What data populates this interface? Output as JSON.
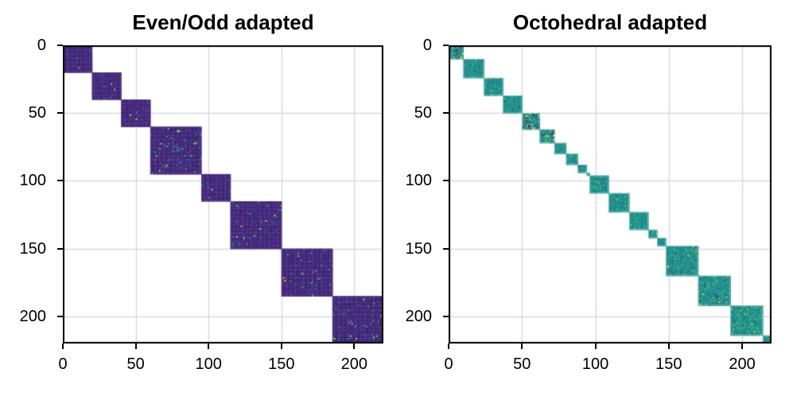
{
  "figure": {
    "background": "#ffffff",
    "grid_color": "#d9d9d9",
    "spine_color": "#000000",
    "tick_color": "#000000",
    "colormap": "viridis"
  },
  "chart_data": [
    {
      "type": "heatmap",
      "title": "Even/Odd adapted",
      "xlim": [
        0,
        220
      ],
      "ylim": [
        220,
        0
      ],
      "xticks": [
        0,
        50,
        100,
        150,
        200
      ],
      "yticks": [
        0,
        50,
        100,
        150,
        200
      ],
      "grid": true,
      "structure": "block-diagonal",
      "block_boundaries": [
        0,
        20,
        40,
        60,
        95,
        115,
        150,
        185,
        220
      ],
      "blocks": [
        {
          "from": 0,
          "to": 20,
          "variance": "low"
        },
        {
          "from": 20,
          "to": 40,
          "variance": "mid"
        },
        {
          "from": 40,
          "to": 60,
          "variance": "mid"
        },
        {
          "from": 60,
          "to": 95,
          "variance": "high"
        },
        {
          "from": 95,
          "to": 115,
          "variance": "mid"
        },
        {
          "from": 115,
          "to": 150,
          "variance": "high"
        },
        {
          "from": 150,
          "to": 185,
          "variance": "high"
        },
        {
          "from": 185,
          "to": 220,
          "variance": "high"
        }
      ],
      "palette": {
        "base_variants": [
          "#3b1f66",
          "#44277a",
          "#3e2270",
          "#482c80",
          "#412573",
          "#3d2469"
        ],
        "lattice_variants": [
          "#4a3185",
          "#50388d",
          "#452e7e"
        ],
        "dark_speckles": [
          "#2c6e8e",
          "#25848e",
          "#1fa187",
          "#35b779",
          "#31688e",
          "#433e85"
        ],
        "light_speckles": [
          "#21a585",
          "#2fb47c",
          "#3dbc74"
        ],
        "hot_speckles": [
          "#fde725",
          "#a0da39",
          "#4ac16d"
        ],
        "edge": "#55428e"
      }
    },
    {
      "type": "heatmap",
      "title": "Octohedral adapted",
      "xlim": [
        0,
        220
      ],
      "ylim": [
        220,
        0
      ],
      "xticks": [
        0,
        50,
        100,
        150,
        200
      ],
      "yticks": [
        0,
        50,
        100,
        150,
        200
      ],
      "grid": true,
      "structure": "block-diagonal",
      "block_boundaries": [
        0,
        10,
        24,
        37,
        50,
        62,
        72,
        80,
        88,
        94,
        96,
        109,
        123,
        136,
        142,
        148,
        170,
        192,
        214,
        220
      ],
      "blocks": [
        {
          "from": 0,
          "to": 10,
          "variance": "high"
        },
        {
          "from": 10,
          "to": 24,
          "variance": "low"
        },
        {
          "from": 24,
          "to": 37,
          "variance": "low"
        },
        {
          "from": 37,
          "to": 50,
          "variance": "low"
        },
        {
          "from": 50,
          "to": 62,
          "variance": "high"
        },
        {
          "from": 62,
          "to": 72,
          "variance": "high"
        },
        {
          "from": 72,
          "to": 80,
          "variance": "low"
        },
        {
          "from": 80,
          "to": 88,
          "variance": "low"
        },
        {
          "from": 88,
          "to": 94,
          "variance": "mid"
        },
        {
          "from": 94,
          "to": 96,
          "variance": "mid"
        },
        {
          "from": 96,
          "to": 109,
          "variance": "low"
        },
        {
          "from": 109,
          "to": 123,
          "variance": "low"
        },
        {
          "from": 123,
          "to": 136,
          "variance": "low"
        },
        {
          "from": 136,
          "to": 142,
          "variance": "low"
        },
        {
          "from": 142,
          "to": 148,
          "variance": "low"
        },
        {
          "from": 148,
          "to": 170,
          "variance": "mid"
        },
        {
          "from": 170,
          "to": 192,
          "variance": "mid"
        },
        {
          "from": 192,
          "to": 214,
          "variance": "mid"
        },
        {
          "from": 214,
          "to": 220,
          "variance": "low"
        }
      ],
      "palette": {
        "base_variants": [
          "#1f918c",
          "#24958b",
          "#27998a",
          "#2a9d8f",
          "#1d8c8d",
          "#28a395"
        ],
        "lattice_variants": [
          "#1d8589",
          "#26968d",
          "#218f8b"
        ],
        "dark_speckles": [
          "#2c728e",
          "#31688e",
          "#3b528b",
          "#26828e"
        ],
        "light_speckles": [
          "#3fbc73",
          "#5ec962",
          "#4ac16d",
          "#35b779"
        ],
        "hot_speckles": [
          "#fde725",
          "#d2e21b",
          "#440154",
          "#46327e",
          "#a0da39"
        ],
        "edge": "#8fcfca"
      }
    }
  ]
}
